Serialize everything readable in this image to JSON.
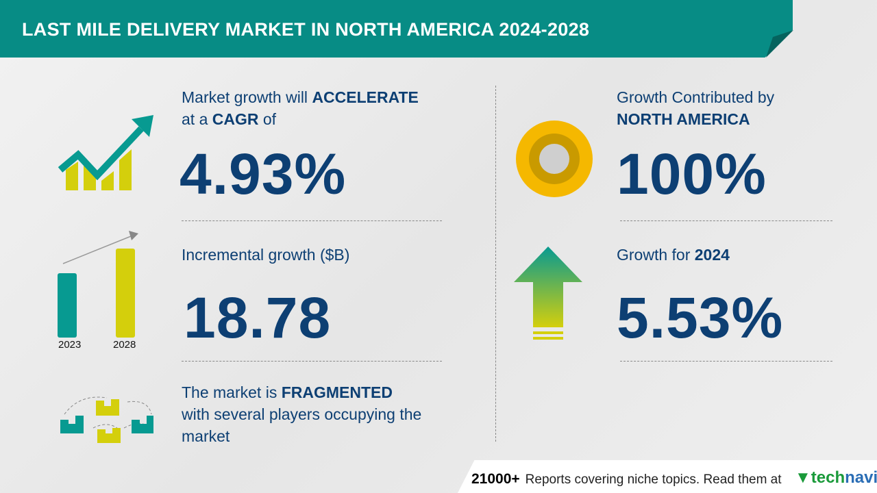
{
  "title": "LAST MILE DELIVERY MARKET IN NORTH AMERICA 2024-2028",
  "cagr": {
    "l1a": "Market growth will ",
    "l1b": "ACCELERATE",
    "l2a": "at a ",
    "l2b": "CAGR",
    "l2c": " of",
    "value": "4.93%"
  },
  "incremental": {
    "label": "Incremental growth ($B)",
    "value": "18.78",
    "years": [
      "2023",
      "2028"
    ]
  },
  "market": {
    "l1a": "The market is ",
    "l1b": "FRAGMENTED",
    "l2": "with several players occupying the",
    "l3": "market"
  },
  "region": {
    "l1": "Growth Contributed by",
    "l2": "NORTH AMERICA",
    "value": "100%"
  },
  "growth_year": {
    "l1a": "Growth for ",
    "l1b": "2024",
    "value": "5.53%"
  },
  "footer": {
    "count": "21000+",
    "text": "Reports covering niche topics. Read them at",
    "logo_a": "tech",
    "logo_b": "navio"
  },
  "colors": {
    "teal": "#078c85",
    "navy": "#0d3f73",
    "yellow": "#d4cf0c",
    "gold": "#f5b800"
  }
}
